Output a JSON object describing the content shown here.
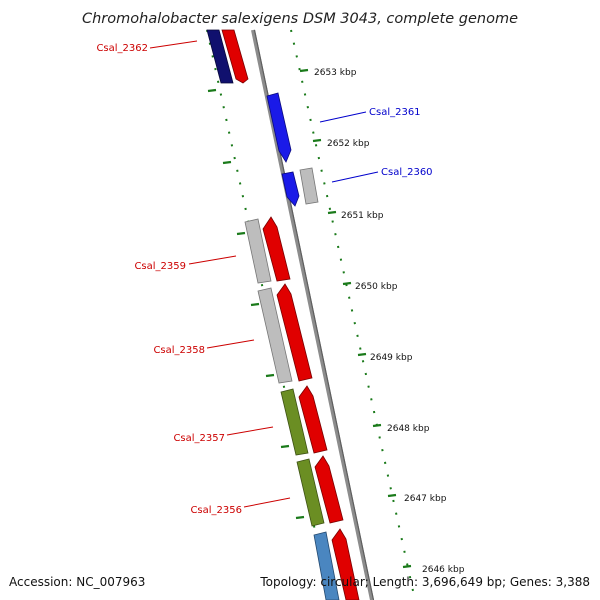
{
  "title": "Chromohalobacter salexigens DSM 3043, complete genome",
  "footer": {
    "accession": "Accession: NC_007963",
    "summary": "Topology: circular; Length: 3,696,649 bp; Genes: 3,388"
  },
  "colors": {
    "backbone": "#8c8c8c",
    "tick": "#1a7a1a",
    "cds_red": "#e00000",
    "cds_navy": "#10106e",
    "cds_blue": "#1a1ae8",
    "cds_grey": "#bdbdbd",
    "cds_olive": "#6b8e23",
    "cds_steel": "#4a86c0",
    "label_red": "#cc0000",
    "label_blue": "#0000cc"
  },
  "scale_kbp": [
    {
      "label": "2653 kbp",
      "pos": 2653
    },
    {
      "label": "2652 kbp",
      "pos": 2652
    },
    {
      "label": "2651 kbp",
      "pos": 2651
    },
    {
      "label": "2650 kbp",
      "pos": 2650
    },
    {
      "label": "2649 kbp",
      "pos": 2649
    },
    {
      "label": "2648 kbp",
      "pos": 2648
    },
    {
      "label": "2647 kbp",
      "pos": 2647
    },
    {
      "label": "2646 kbp",
      "pos": 2646
    }
  ],
  "features": [
    {
      "name": "Csal_2362",
      "type": "gene",
      "strand": "minus",
      "color": "cds_navy"
    },
    {
      "name": "Csal_2362",
      "type": "cds",
      "strand": "minus",
      "color": "cds_red"
    },
    {
      "name": "Csal_2361",
      "type": "gene",
      "strand": "plus",
      "color": "cds_blue"
    },
    {
      "name": "Csal_2360",
      "type": "gene",
      "strand": "plus",
      "color": "cds_blue"
    },
    {
      "name": "Csal_2360",
      "type": "other",
      "strand": "plus",
      "color": "cds_grey"
    },
    {
      "name": "Csal_2359",
      "type": "gene",
      "strand": "minus",
      "color": "cds_grey"
    },
    {
      "name": "Csal_2359",
      "type": "cds",
      "strand": "minus",
      "color": "cds_red"
    },
    {
      "name": "Csal_2358",
      "type": "gene",
      "strand": "minus",
      "color": "cds_grey"
    },
    {
      "name": "Csal_2358",
      "type": "cds",
      "strand": "minus",
      "color": "cds_red"
    },
    {
      "name": "Csal_2357",
      "type": "gene",
      "strand": "minus",
      "color": "cds_olive"
    },
    {
      "name": "Csal_2357",
      "type": "cds",
      "strand": "minus",
      "color": "cds_red"
    },
    {
      "name": "Csal_2356",
      "type": "gene",
      "strand": "minus",
      "color": "cds_olive"
    },
    {
      "name": "Csal_2356",
      "type": "cds",
      "strand": "minus",
      "color": "cds_red"
    },
    {
      "name": "",
      "type": "gene",
      "strand": "minus",
      "color": "cds_steel"
    },
    {
      "name": "",
      "type": "cds",
      "strand": "minus",
      "color": "cds_red"
    }
  ],
  "gene_labels": [
    {
      "text": "Csal_2362",
      "color": "label_red"
    },
    {
      "text": "Csal_2361",
      "color": "label_blue"
    },
    {
      "text": "Csal_2360",
      "color": "label_blue"
    },
    {
      "text": "Csal_2359",
      "color": "label_red"
    },
    {
      "text": "Csal_2358",
      "color": "label_red"
    },
    {
      "text": "Csal_2357",
      "color": "label_red"
    },
    {
      "text": "Csal_2356",
      "color": "label_red"
    }
  ]
}
